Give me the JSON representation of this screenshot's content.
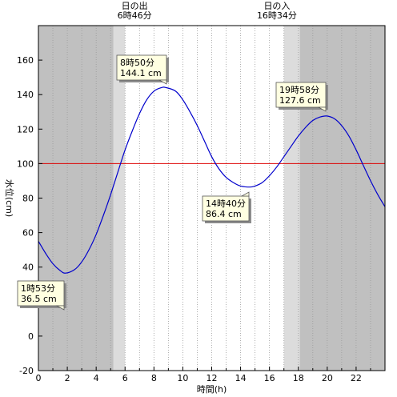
{
  "chart_data": {
    "type": "line",
    "xlabel": "時間(h)",
    "ylabel": "水位(cm)",
    "xlim": [
      0,
      24
    ],
    "ylim": [
      -20,
      180
    ],
    "x_ticks": [
      0,
      2,
      4,
      6,
      8,
      10,
      12,
      14,
      16,
      18,
      20,
      22
    ],
    "y_ticks": [
      -20,
      0,
      20,
      40,
      60,
      80,
      100,
      120,
      140,
      160
    ],
    "grid": "vertical dotted, hourly",
    "reference_line": {
      "value": 100,
      "color": "#dd0000"
    },
    "sunrise": {
      "label": "日の出",
      "time": "6時46分",
      "hour": 6.77
    },
    "sunset": {
      "label": "日の入",
      "time": "16時34分",
      "hour": 16.57
    },
    "night_shading": [
      [
        0,
        5.2
      ],
      [
        18.1,
        24
      ]
    ],
    "twilight_shading": [
      [
        5.2,
        6.0
      ],
      [
        17.0,
        18.1
      ]
    ],
    "series": [
      {
        "color": "#0000cc",
        "x": [
          0,
          0.5,
          1.0,
          1.5,
          1.88,
          2.5,
          3.0,
          3.5,
          4.0,
          4.5,
          5.0,
          5.5,
          6.0,
          6.5,
          7.0,
          7.5,
          8.0,
          8.5,
          8.83,
          9.5,
          10.0,
          10.5,
          11.0,
          11.5,
          12.0,
          12.5,
          13.0,
          13.5,
          14.0,
          14.67,
          15.0,
          15.5,
          16.0,
          16.5,
          17.0,
          17.5,
          18.0,
          18.5,
          19.0,
          19.5,
          19.97,
          20.5,
          21.0,
          21.5,
          22.0,
          22.5,
          23.0,
          23.5,
          24.0
        ],
        "y": [
          55,
          48,
          42,
          38,
          36.5,
          38.5,
          43,
          50,
          59,
          70,
          82,
          95,
          108,
          119,
          129,
          137,
          142,
          144,
          144.1,
          142,
          137,
          130,
          122,
          113,
          104,
          97,
          92,
          89,
          87,
          86.4,
          87,
          89,
          93,
          98,
          104,
          110,
          116,
          121,
          125,
          127,
          127.6,
          126,
          122,
          116,
          108,
          99,
          90,
          82,
          75
        ]
      }
    ],
    "annotations": [
      {
        "time": "1時53分",
        "value": "36.5 cm"
      },
      {
        "time": "8時50分",
        "value": "144.1 cm"
      },
      {
        "time": "14時40分",
        "value": "86.4 cm"
      },
      {
        "time": "19時58分",
        "value": "127.6 cm"
      }
    ]
  }
}
